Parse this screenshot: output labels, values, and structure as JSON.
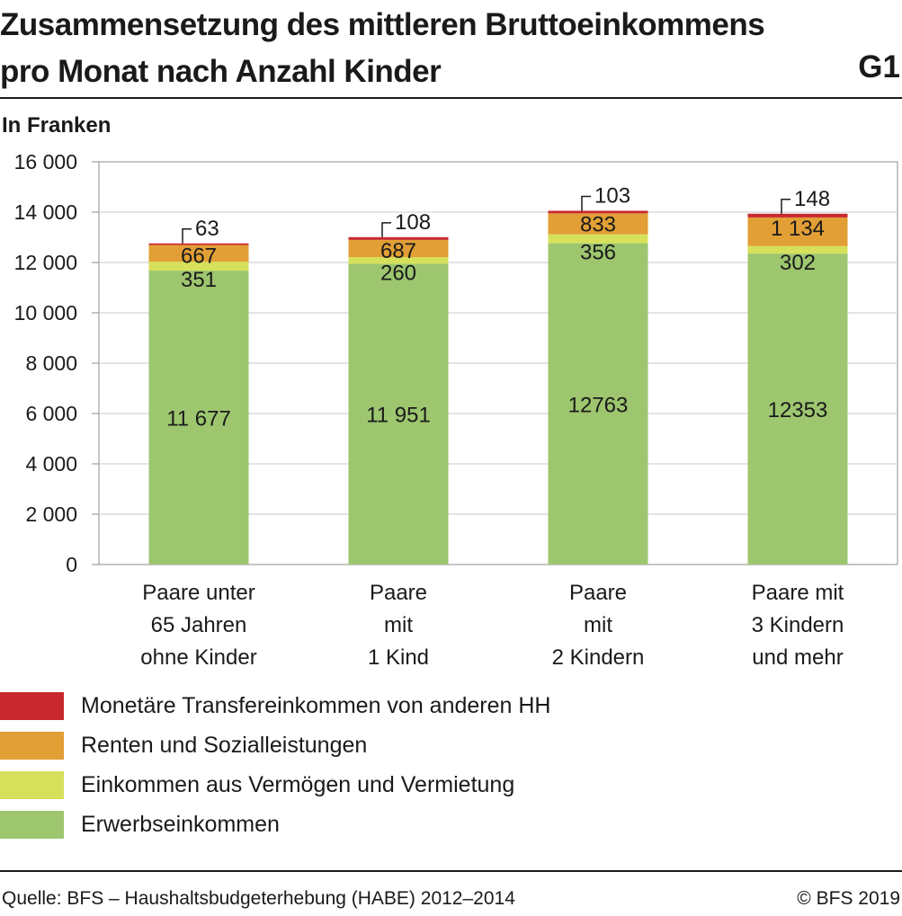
{
  "header": {
    "title_line1": "Zusammensetzung des mittleren Bruttoeinkommens",
    "title_line2": "pro Monat nach Anzahl Kinder",
    "chart_id": "G1",
    "unit_label": "In Franken"
  },
  "footer": {
    "source": "Quelle: BFS – Haushaltsbudgeterhebung (HABE) 2012–2014",
    "copyright": "© BFS 2019"
  },
  "chart_data": {
    "type": "bar",
    "stacked": true,
    "title": "Zusammensetzung des mittleren Bruttoeinkommens pro Monat nach Anzahl Kinder",
    "ylabel": "In Franken",
    "ylim": [
      0,
      16000
    ],
    "yticks": [
      0,
      2000,
      4000,
      6000,
      8000,
      10000,
      12000,
      14000,
      16000
    ],
    "ytick_labels": [
      "0",
      "2 000",
      "4 000",
      "6 000",
      "8 000",
      "10 000",
      "12 000",
      "14 000",
      "16 000"
    ],
    "grid": "horizontal",
    "legend_placement": "bottom",
    "categories": [
      [
        "Paare unter",
        "65 Jahren",
        "ohne Kinder"
      ],
      [
        "Paare",
        "mit",
        "1 Kind"
      ],
      [
        "Paare",
        "mit",
        "2 Kindern"
      ],
      [
        "Paare mit",
        "3 Kindern",
        "und mehr"
      ]
    ],
    "series": [
      {
        "name": "Erwerbseinkommen",
        "color": "#9dc66f",
        "values": [
          11677,
          11951,
          12763,
          12353
        ],
        "labels": [
          "11 677",
          "11 951",
          "12763",
          "12353"
        ]
      },
      {
        "name": "Einkommen aus Vermögen und Vermietung",
        "color": "#d6e05a",
        "values": [
          351,
          260,
          356,
          302
        ],
        "labels": [
          "351",
          "260",
          "356",
          "302"
        ]
      },
      {
        "name": "Renten und Sozialleistungen",
        "color": "#e19f35",
        "values": [
          667,
          687,
          833,
          1134
        ],
        "labels": [
          "667",
          "687",
          "833",
          "1 134"
        ]
      },
      {
        "name": "Monetäre Transfereinkommen von anderen HH",
        "color": "#c8292f",
        "values": [
          63,
          108,
          103,
          148
        ],
        "labels": [
          "63",
          "108",
          "103",
          "148"
        ]
      }
    ]
  },
  "legend": [
    {
      "label": "Monetäre Transfereinkommen von anderen HH",
      "color": "#c8292f"
    },
    {
      "label": "Renten und Sozialleistungen",
      "color": "#e19f35"
    },
    {
      "label": "Einkommen aus Vermögen und Vermietung",
      "color": "#d6e05a"
    },
    {
      "label": "Erwerbseinkommen",
      "color": "#9dc66f"
    }
  ]
}
